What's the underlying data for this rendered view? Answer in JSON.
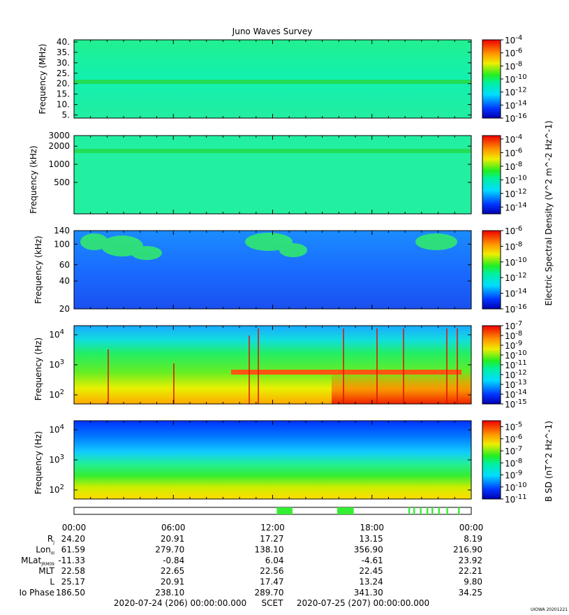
{
  "figure": {
    "title": "Juno Waves Survey",
    "credit": "UIOWA 20201221"
  },
  "colors": {
    "background": "#ffffff",
    "axis": "#000000",
    "event_bar": "#33ee33"
  },
  "chart_data": [
    {
      "type": "heatmap",
      "ylabel": "Frequency (MHz)",
      "y_scale": "linear",
      "ylim": [
        3.5,
        41
      ],
      "y_ticks": [
        5,
        10,
        15,
        20,
        25,
        30,
        35,
        40
      ],
      "y_tick_labels": [
        "5.",
        "10.",
        "15.",
        "20.",
        "25.",
        "30.",
        "35.",
        "40."
      ],
      "xlim_hours": [
        0,
        24
      ],
      "colorbar": {
        "min_exp": -16,
        "max_exp": -4,
        "labels": [
          "10-4",
          "10-6",
          "10-8",
          "10-10",
          "10-12",
          "10-14",
          "10-16"
        ],
        "exps": [
          -4,
          -6,
          -8,
          -10,
          -12,
          -14,
          -16
        ]
      },
      "dominant_level": "cyan-green",
      "features": [
        {
          "kind": "horizontal band",
          "freq": 21,
          "level": "green"
        }
      ]
    },
    {
      "type": "heatmap",
      "ylabel": "Frequency (kHz)",
      "y_scale": "log",
      "ylim": [
        150,
        3000
      ],
      "y_ticks": [
        500,
        1000,
        2000,
        3000
      ],
      "y_tick_labels": [
        "500",
        "1000",
        "2000",
        "3000"
      ],
      "xlim_hours": [
        0,
        24
      ],
      "colorbar": {
        "min_exp": -15,
        "max_exp": -3.5,
        "labels": [
          "10-4",
          "10-6",
          "10-8",
          "10-10",
          "10-12",
          "10-14"
        ],
        "exps": [
          -4,
          -6,
          -8,
          -10,
          -12,
          -14
        ]
      },
      "dominant_level": "cyan-green",
      "features": [
        {
          "kind": "horizontal band",
          "freq": 1600,
          "level": "green"
        }
      ]
    },
    {
      "type": "heatmap",
      "ylabel": "Frequency (kHz)",
      "y_scale": "log",
      "ylim": [
        20,
        140
      ],
      "y_ticks": [
        20,
        40,
        60,
        100,
        140
      ],
      "y_tick_labels": [
        "20",
        "40",
        "60",
        "100",
        "140"
      ],
      "xlim_hours": [
        0,
        24
      ],
      "colorbar": {
        "min_exp": -16,
        "max_exp": -6,
        "labels": [
          "10-6",
          "10-8",
          "10-10",
          "10-12",
          "10-14",
          "10-16"
        ],
        "exps": [
          -6,
          -8,
          -10,
          -12,
          -14,
          -16
        ]
      },
      "dominant_level": "blue",
      "features": [
        {
          "kind": "patches",
          "freq_range": [
            70,
            140
          ],
          "level": "green"
        }
      ]
    },
    {
      "type": "heatmap",
      "ylabel": "Frequency (Hz)",
      "y_scale": "log",
      "ylim": [
        50,
        20000
      ],
      "y_ticks": [
        100,
        1000,
        10000
      ],
      "y_tick_labels": [
        "10^2",
        "10^3",
        "10^4"
      ],
      "xlim_hours": [
        0,
        24
      ],
      "colorbar": {
        "min_exp": -15,
        "max_exp": -7,
        "labels": [
          "10-7",
          "10-8",
          "10-9",
          "10-10",
          "10-11",
          "10-12",
          "10-13",
          "10-14",
          "10-15"
        ],
        "exps": [
          -7,
          -8,
          -9,
          -10,
          -11,
          -12,
          -13,
          -14,
          -15
        ]
      },
      "dominant_level": "green-yellow-red gradient (low f high)",
      "features": [
        {
          "kind": "horizontal band",
          "freq": 600,
          "hours": [
            9.5,
            23.3
          ],
          "level": "orange-red"
        }
      ]
    },
    {
      "type": "heatmap",
      "ylabel": "Frequency (Hz)",
      "y_scale": "log",
      "ylim": [
        50,
        20000
      ],
      "y_ticks": [
        100,
        1000,
        10000
      ],
      "y_tick_labels": [
        "10^2",
        "10^3",
        "10^4"
      ],
      "xlim_hours": [
        0,
        24
      ],
      "colorbar": {
        "min_exp": -11,
        "max_exp": -4.5,
        "labels": [
          "10-5",
          "10-6",
          "10-7",
          "10-8",
          "10-9",
          "10-10",
          "10-11"
        ],
        "exps": [
          -5,
          -6,
          -7,
          -8,
          -9,
          -10,
          -11
        ]
      },
      "dominant_level": "blue-green-yellow gradient",
      "features": []
    }
  ],
  "colorbar_titles": {
    "electric": "Electric Spectral Density (V^2 m^-2 Hz^-1)",
    "magnetic": "B SD (nT^2 Hz^-1)"
  },
  "event_bar": {
    "segments_hours": [
      [
        12.25,
        13.2
      ],
      [
        15.9,
        16.9
      ],
      [
        20.2,
        20.3
      ],
      [
        20.5,
        20.6
      ],
      [
        20.9,
        21.0
      ],
      [
        21.3,
        21.4
      ],
      [
        21.6,
        21.7
      ],
      [
        22.0,
        22.1
      ],
      [
        22.5,
        22.6
      ],
      [
        23.2,
        23.3
      ]
    ]
  },
  "x_axis": {
    "tick_labels": [
      "00:00",
      "06:00",
      "12:00",
      "18:00",
      "00:00"
    ],
    "tick_hours": [
      0,
      6,
      12,
      18,
      24
    ]
  },
  "ephemeris": {
    "rows": [
      {
        "label": "R",
        "sub": "J",
        "values": [
          "24.20",
          "20.91",
          "17.27",
          "13.15",
          "8.19"
        ]
      },
      {
        "label": "Lon",
        "sub": "III",
        "values": [
          "61.59",
          "279.70",
          "138.10",
          "356.90",
          "216.90"
        ]
      },
      {
        "label": "MLat",
        "sub": "JRM09",
        "values": [
          "-11.33",
          "-0.84",
          "6.04",
          "-4.61",
          "23.92"
        ]
      },
      {
        "label": "MLT",
        "sub": "",
        "values": [
          "22.58",
          "22.65",
          "22.56",
          "22.45",
          "22.21"
        ]
      },
      {
        "label": "L",
        "sub": "",
        "values": [
          "25.17",
          "20.91",
          "17.47",
          "13.24",
          "9.80"
        ]
      },
      {
        "label": "Io Phase",
        "sub": "",
        "values": [
          "186.50",
          "238.10",
          "289.70",
          "341.30",
          "34.25"
        ]
      }
    ]
  },
  "footer": {
    "start": "2020-07-24 (206) 00:00:00.000",
    "scet": "SCET",
    "end": "2020-07-25 (207) 00:00:00.000"
  }
}
